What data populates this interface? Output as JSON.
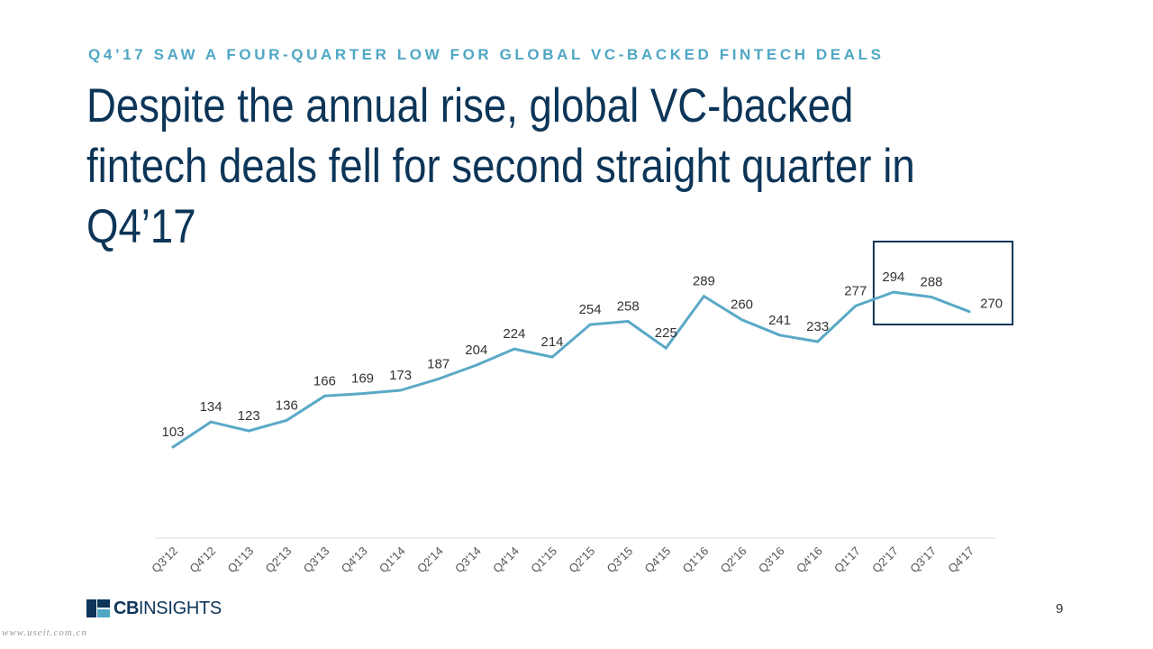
{
  "kicker": "Q4’17 SAW A FOUR-QUARTER LOW FOR GLOBAL VC-BACKED FINTECH DEALS",
  "headline": "Despite the annual rise, global VC-backed fintech deals fell for second straight quarter in Q4’17",
  "chart_data": {
    "type": "line",
    "title": "",
    "xlabel": "",
    "ylabel": "",
    "categories": [
      "Q3'12",
      "Q4'12",
      "Q1'13",
      "Q2'13",
      "Q3'13",
      "Q4'13",
      "Q1'14",
      "Q2'14",
      "Q3'14",
      "Q4'14",
      "Q1'15",
      "Q2'15",
      "Q3'15",
      "Q4'15",
      "Q1'16",
      "Q2'16",
      "Q3'16",
      "Q4'16",
      "Q1'17",
      "Q2'17",
      "Q3'17",
      "Q4'17"
    ],
    "series": [
      {
        "values": [
          103,
          134,
          123,
          136,
          166,
          169,
          173,
          187,
          204,
          224,
          214,
          254,
          258,
          225,
          289,
          260,
          241,
          233,
          277,
          294,
          288,
          270
        ]
      }
    ],
    "ylim": [
      0,
      400
    ],
    "grid": false,
    "legend": "none",
    "highlight_range": [
      "Q2'17",
      "Q4'17"
    ],
    "line_color": "#5aa9c6",
    "highlight_box_color": "#0c3558"
  },
  "footer": {
    "logo_cb": "CB",
    "logo_insights": "INSIGHTS",
    "page_number": "9",
    "watermark": "www.useit.com.cn"
  }
}
